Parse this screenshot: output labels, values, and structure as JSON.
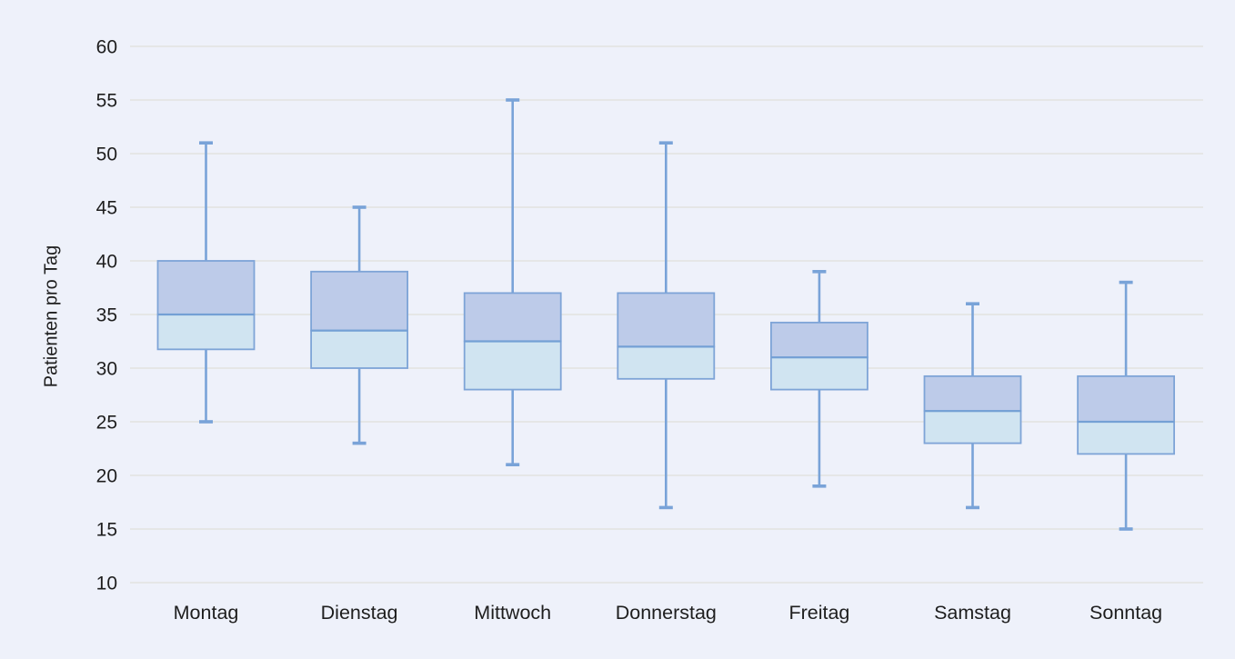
{
  "page": {
    "background_color": "#eef1fa"
  },
  "chart_data": {
    "type": "box",
    "ylabel": "Patienten pro Tag",
    "xlabel": "",
    "ylim": [
      10,
      60
    ],
    "yticks": [
      60,
      55,
      50,
      45,
      40,
      35,
      30,
      25,
      20,
      15,
      10
    ],
    "grid": true,
    "legend": "none",
    "categories": [
      "Montag",
      "Dienstag",
      "Mittwoch",
      "Donnerstag",
      "Freitag",
      "Samstag",
      "Sonntag"
    ],
    "boxes": [
      {
        "category": "Montag",
        "min": 25,
        "q1": 31.75,
        "median": 35,
        "q3": 40,
        "max": 51
      },
      {
        "category": "Dienstag",
        "min": 23,
        "q1": 30,
        "median": 33.5,
        "q3": 39,
        "max": 45
      },
      {
        "category": "Mittwoch",
        "min": 21,
        "q1": 28,
        "median": 32.5,
        "q3": 37,
        "max": 55
      },
      {
        "category": "Donnerstag",
        "min": 17,
        "q1": 29,
        "median": 32,
        "q3": 37,
        "max": 51
      },
      {
        "category": "Freitag",
        "min": 19,
        "q1": 28,
        "median": 31,
        "q3": 34.25,
        "max": 39
      },
      {
        "category": "Samstag",
        "min": 17,
        "q1": 23,
        "median": 26,
        "q3": 29.25,
        "max": 36
      },
      {
        "category": "Sonntag",
        "min": 15,
        "q1": 22,
        "median": 25,
        "q3": 29.25,
        "max": 38
      }
    ],
    "colors": {
      "background": "#eef1fa",
      "gridline": "#e2e2e0",
      "box_upper_fill": "#bdcbe9",
      "box_lower_fill": "#d0e4f1",
      "box_border": "#7ea4d7",
      "median_line": "#74a0d5",
      "whisker": "#79a3d8",
      "text": "#1e1e1e"
    }
  }
}
